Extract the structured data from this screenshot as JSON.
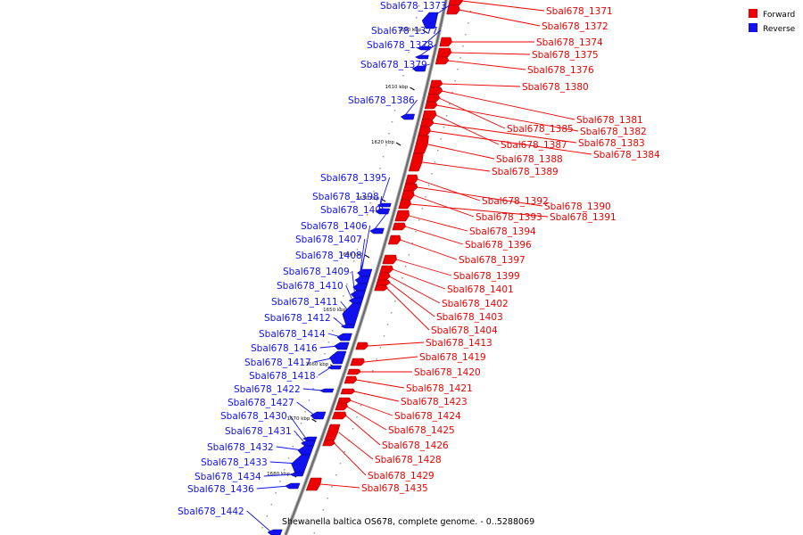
{
  "legend": {
    "forward": {
      "label": "Forward",
      "color": "#ee0000"
    },
    "reverse": {
      "label": "Reverse",
      "color": "#1111ee"
    }
  },
  "caption": "Shewanella baltica OS678, complete genome. - 0..5288069",
  "ticks": [
    "1600 kbp",
    "1610 kbp",
    "1620 kbp",
    "1630 kbp",
    "1640 kbp",
    "1650 kbp",
    "1660 kbp",
    "1670 kbp",
    "1680 kbp"
  ],
  "forward_labels": [
    "Sbal678_1371",
    "Sbal678_1372",
    "Sbal678_1374",
    "Sbal678_1375",
    "Sbal678_1376",
    "Sbal678_1380",
    "Sbal678_1381",
    "Sbal678_1385",
    "Sbal678_1382",
    "Sbal678_1387",
    "Sbal678_1383",
    "Sbal678_1384",
    "Sbal678_1388",
    "Sbal678_1389",
    "Sbal678_1392",
    "Sbal678_1390",
    "Sbal678_1393",
    "Sbal678_1391",
    "Sbal678_1394",
    "Sbal678_1396",
    "Sbal678_1397",
    "Sbal678_1399",
    "Sbal678_1401",
    "Sbal678_1402",
    "Sbal678_1403",
    "Sbal678_1404",
    "Sbal678_1413",
    "Sbal678_1419",
    "Sbal678_1420",
    "Sbal678_1421",
    "Sbal678_1423",
    "Sbal678_1424",
    "Sbal678_1425",
    "Sbal678_1426",
    "Sbal678_1428",
    "Sbal678_1429",
    "Sbal678_1435"
  ],
  "reverse_labels": [
    "Sbal678_1373",
    "Sbal678_1377",
    "Sbal678_1378",
    "Sbal678_1379",
    "Sbal678_1386",
    "Sbal678_1395",
    "Sbal678_1398",
    "Sbal678_1405",
    "Sbal678_1406",
    "Sbal678_1407",
    "Sbal678_1408",
    "Sbal678_1409",
    "Sbal678_1410",
    "Sbal678_1411",
    "Sbal678_1412",
    "Sbal678_1414",
    "Sbal678_1416",
    "Sbal678_1417",
    "Sbal678_1418",
    "Sbal678_1422",
    "Sbal678_1427",
    "Sbal678_1430",
    "Sbal678_1431",
    "Sbal678_1432",
    "Sbal678_1433",
    "Sbal678_1434",
    "Sbal678_1436",
    "Sbal678_1442"
  ]
}
